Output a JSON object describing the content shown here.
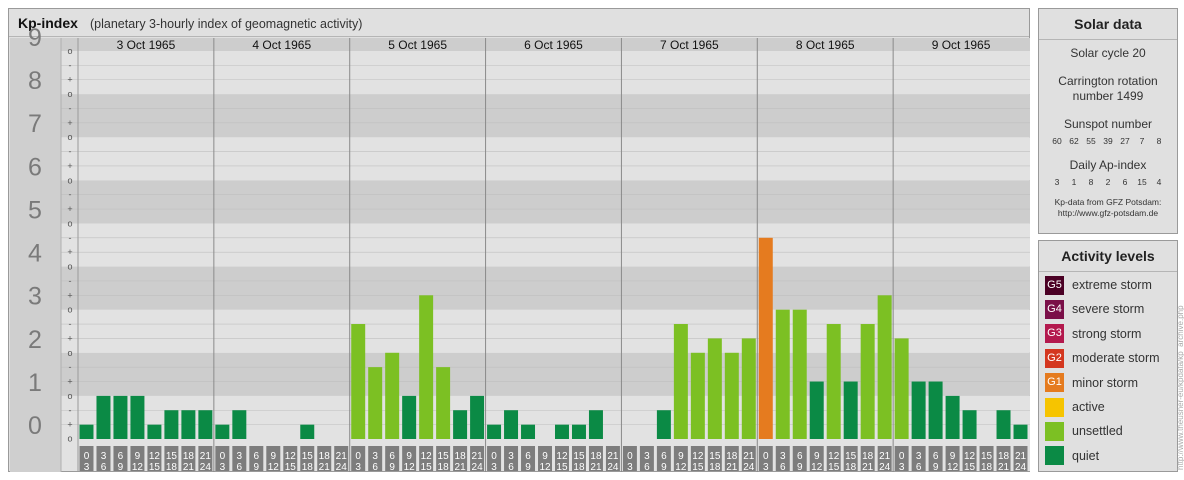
{
  "chart": {
    "title": "Kp-index",
    "subtitle": "(planetary 3-hourly index of geomagnetic activity)"
  },
  "solar": {
    "title": "Solar data",
    "cycle": "Solar cycle 20",
    "carrington_line1": "Carrington rotation",
    "carrington_line2": "number 1499",
    "sunspot_label": "Sunspot number",
    "sunspots": [
      "60",
      "62",
      "55",
      "39",
      "27",
      "7",
      "8"
    ],
    "ap_label": "Daily Ap-index",
    "ap_values": [
      "3",
      "1",
      "8",
      "2",
      "6",
      "15",
      "4"
    ],
    "source_line1": "Kp-data from GFZ Potsdam:",
    "source_line2": "http://www.gfz-potsdam.de"
  },
  "levels": {
    "title": "Activity levels",
    "items": [
      {
        "code": "G5",
        "label": "extreme storm",
        "color": "#4a0024"
      },
      {
        "code": "G4",
        "label": "severe storm",
        "color": "#7a0f48"
      },
      {
        "code": "G3",
        "label": "strong storm",
        "color": "#b3194d"
      },
      {
        "code": "G2",
        "label": "moderate storm",
        "color": "#d4371f"
      },
      {
        "code": "G1",
        "label": "minor storm",
        "color": "#e57b1f"
      },
      {
        "code": "",
        "label": "active",
        "color": "#f6c400"
      },
      {
        "code": "",
        "label": "unsettled",
        "color": "#7cc023"
      },
      {
        "code": "",
        "label": "quiet",
        "color": "#0b8a45"
      }
    ]
  },
  "credit": "http://www.theusner-eu/kpdata/kp_archive.php",
  "chart_data": {
    "type": "bar",
    "ylim": [
      0,
      9
    ],
    "y_ticks": [
      "0",
      "1",
      "2",
      "3",
      "4",
      "5",
      "6",
      "7",
      "8",
      "9"
    ],
    "y_minor_labels": [
      "o",
      "+",
      "-"
    ],
    "days": [
      "3 Oct 1965",
      "4 Oct 1965",
      "5 Oct 1965",
      "6 Oct 1965",
      "7 Oct 1965",
      "8 Oct 1965",
      "9 Oct 1965"
    ],
    "interval_start": [
      "0",
      "3",
      "6",
      "9",
      "12",
      "15",
      "18",
      "21"
    ],
    "interval_end": [
      "3",
      "6",
      "9",
      "12",
      "15",
      "18",
      "21",
      "24"
    ],
    "values": [
      [
        0.333,
        1.0,
        1.0,
        1.0,
        0.333,
        0.667,
        0.667,
        0.667
      ],
      [
        0.333,
        0.667,
        0.0,
        0.0,
        0.0,
        0.333,
        0.0,
        0.0
      ],
      [
        2.667,
        1.667,
        2.0,
        1.0,
        3.333,
        1.667,
        0.667,
        1.0
      ],
      [
        0.333,
        0.667,
        0.333,
        0.0,
        0.333,
        0.333,
        0.667,
        0.0
      ],
      [
        0.0,
        0.0,
        0.667,
        2.667,
        2.0,
        2.333,
        2.0,
        2.333
      ],
      [
        4.667,
        3.0,
        3.0,
        1.333,
        2.667,
        1.333,
        2.667,
        3.333
      ],
      [
        2.333,
        1.333,
        1.333,
        1.0,
        0.667,
        0.0,
        0.667,
        0.333
      ]
    ],
    "colors": {
      "quiet": "#0b8a45",
      "unsettled": "#7cc023",
      "active": "#f6c400",
      "g1": "#e57b1f"
    }
  }
}
